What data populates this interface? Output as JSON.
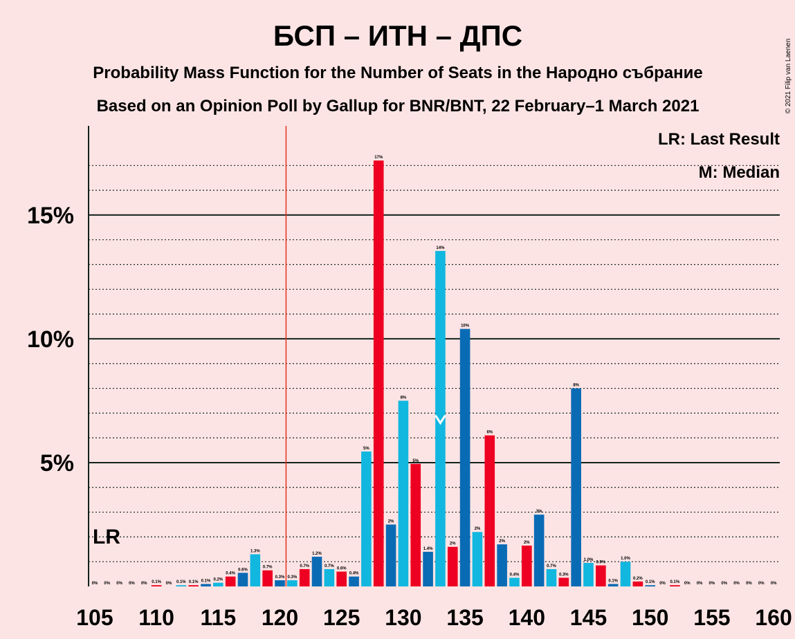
{
  "title": "БСП – ИТН – ДПС",
  "subtitle1": "Probability Mass Function for the Number of Seats in the Народно събрание",
  "subtitle2": "Based on an Opinion Poll by Gallup for BNR/BNT, 22 February–1 March 2021",
  "copyright": "© 2021 Filip van Laenen",
  "legend": {
    "lr": "LR: Last Result",
    "median": "M: Median"
  },
  "lr_label": "LR",
  "colors": {
    "background": "#FDE4E4",
    "blue": "#0A6BB5",
    "cyan": "#12B7E0",
    "red": "#EE0022",
    "text": "#10221C",
    "lr_line": "#E03020"
  },
  "chart_data": {
    "type": "bar",
    "x": [
      105,
      106,
      107,
      108,
      109,
      110,
      111,
      112,
      113,
      114,
      115,
      116,
      117,
      118,
      119,
      120,
      121,
      122,
      123,
      124,
      125,
      126,
      127,
      128,
      129,
      130,
      131,
      132,
      133,
      134,
      135,
      136,
      137,
      138,
      139,
      140,
      141,
      142,
      143,
      144,
      145,
      146,
      147,
      148,
      149,
      150,
      151,
      152,
      153,
      154,
      155,
      156,
      157,
      158,
      159,
      160
    ],
    "values": [
      0.0,
      0.0,
      0.0,
      0.0,
      0.0,
      0.05,
      0.0,
      0.05,
      0.05,
      0.1,
      0.15,
      0.4,
      0.55,
      1.3,
      0.65,
      0.25,
      0.25,
      0.7,
      1.2,
      0.7,
      0.6,
      0.4,
      5.45,
      17.2,
      2.5,
      7.5,
      4.95,
      1.4,
      13.55,
      1.6,
      10.4,
      2.2,
      6.1,
      1.7,
      0.35,
      1.65,
      2.9,
      0.7,
      0.35,
      8.0,
      0.95,
      0.85,
      0.1,
      1.0,
      0.2,
      0.05,
      0.0,
      0.05,
      0.0,
      0.0,
      0.0,
      0.0,
      0.0,
      0.0,
      0.0,
      0.0
    ],
    "labels": [
      "0%",
      "0%",
      "0%",
      "0%",
      "0%",
      "0.1%",
      "0%",
      "0.1%",
      "0.1%",
      "0.1%",
      "0.2%",
      "0.4%",
      "0.6%",
      "1.3%",
      "0.7%",
      "0.3%",
      "0.3%",
      "0.7%",
      "1.2%",
      "0.7%",
      "0.6%",
      "0.4%",
      "5%",
      "17%",
      "2%",
      "8%",
      "5%",
      "1.4%",
      "14%",
      "2%",
      "10%",
      "2%",
      "6%",
      "2%",
      "0.4%",
      "2%",
      "3%",
      "0.7%",
      "0.3%",
      "8%",
      "1.0%",
      "0.9%",
      "0.1%",
      "1.0%",
      "0.2%",
      "0.1%",
      "0%",
      "0.1%",
      "0%",
      "0%",
      "0%",
      "0%",
      "0%",
      "0%",
      "0%",
      "0%"
    ],
    "bar_colors": [
      "blue",
      "cyan",
      "red"
    ],
    "xticks": [
      105,
      110,
      115,
      120,
      125,
      130,
      135,
      140,
      145,
      150,
      155,
      160
    ],
    "yticks": [
      5,
      10,
      15
    ],
    "ytick_labels": [
      "5%",
      "10%",
      "15%"
    ],
    "ylim": [
      0,
      18.6
    ],
    "xlim": [
      104.5,
      160.5
    ],
    "last_result": 120.5,
    "median": 133,
    "xlabel": "",
    "ylabel": ""
  }
}
